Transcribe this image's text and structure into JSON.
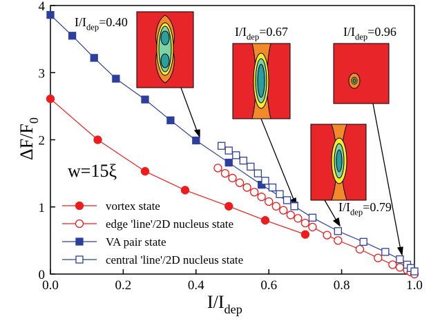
{
  "chart_data": {
    "type": "line",
    "xlabel": {
      "main": "I/I",
      "sub": "dep"
    },
    "ylabel": {
      "main": "ΔF/F",
      "sub": "0"
    },
    "annotations": [
      {
        "main": "I/I",
        "sub": "dep",
        "rest": "=0.40"
      },
      {
        "main": "I/I",
        "sub": "dep",
        "rest": "=0.67"
      },
      {
        "main": "I/I",
        "sub": "dep",
        "rest": "=0.96"
      },
      {
        "main": "I/I",
        "sub": "dep",
        "rest": "=0.79"
      }
    ],
    "width_label": "w=15ξ",
    "xlim": [
      0,
      1
    ],
    "ylim": [
      0,
      4
    ],
    "xticks": [
      {
        "value": 0,
        "label": "0.0"
      },
      0.2,
      0.4,
      0.6,
      0.8,
      {
        "value": 1,
        "label": "1.0"
      }
    ],
    "yticks": [
      0,
      1,
      2,
      3,
      4
    ],
    "legend": "lower left",
    "series": [
      {
        "name": "vortex state",
        "color": "#ee1c1c",
        "marker": "circle",
        "filled": true,
        "x": [
          0,
          0.13,
          0.26,
          0.37,
          0.49,
          0.59,
          0.7
        ],
        "values": [
          2.61,
          2.0,
          1.53,
          1.25,
          1.01,
          0.8,
          0.59
        ]
      },
      {
        "name": "edge 'line'/2D nucleus state",
        "color": "#ee1c1c",
        "marker": "circle",
        "filled": false,
        "x": [
          0.46,
          0.48,
          0.5,
          0.52,
          0.54,
          0.56,
          0.58,
          0.6,
          0.62,
          0.64,
          0.66,
          0.68,
          0.7,
          0.72,
          0.76,
          0.79,
          0.85,
          0.9,
          0.94,
          0.96,
          0.98,
          0.99,
          1.0
        ],
        "values": [
          1.58,
          1.5,
          1.43,
          1.36,
          1.29,
          1.22,
          1.15,
          1.08,
          1.01,
          0.95,
          0.88,
          0.83,
          0.76,
          0.7,
          0.58,
          0.5,
          0.37,
          0.24,
          0.14,
          0.1,
          0.06,
          0.03,
          0.0
        ]
      },
      {
        "name": "VA pair state",
        "color": "#2c3e9e",
        "marker": "square",
        "filled": true,
        "x": [
          0,
          0.06,
          0.12,
          0.18,
          0.26,
          0.33,
          0.4,
          0.49,
          0.58,
          0.67
        ],
        "values": [
          3.86,
          3.55,
          3.22,
          2.91,
          2.6,
          2.29,
          1.99,
          1.66,
          1.33,
          1.02
        ]
      },
      {
        "name": "central 'line'/2D nucleus state",
        "color": "#2c3e9e",
        "marker": "square",
        "filled": false,
        "x": [
          0.47,
          0.49,
          0.51,
          0.53,
          0.55,
          0.57,
          0.59,
          0.61,
          0.63,
          0.65,
          0.67,
          0.72,
          0.79,
          0.86,
          0.92,
          0.96,
          0.98,
          0.99,
          1.0
        ],
        "values": [
          1.91,
          1.84,
          1.77,
          1.69,
          1.6,
          1.5,
          1.39,
          1.29,
          1.19,
          1.1,
          1.01,
          0.84,
          0.64,
          0.48,
          0.33,
          0.22,
          0.14,
          0.09,
          0.04
        ]
      }
    ]
  }
}
